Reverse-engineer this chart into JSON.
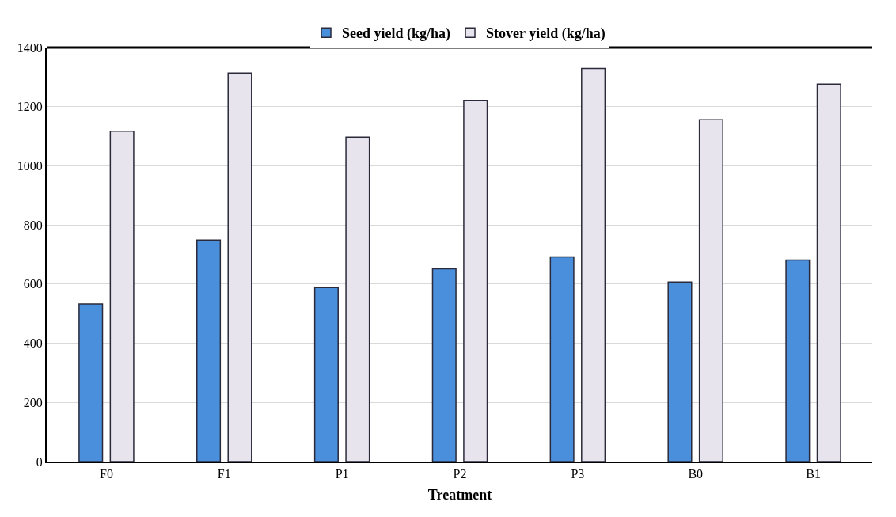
{
  "chart_data": {
    "type": "bar",
    "xlabel": "Treatment",
    "categories": [
      "F0",
      "F1",
      "P1",
      "P2",
      "P3",
      "B0",
      "B1"
    ],
    "series": [
      {
        "name": "Seed yield (kg/ha)",
        "color": "#4a8fdc",
        "values": [
          533,
          749,
          588,
          652,
          692,
          607,
          681
        ]
      },
      {
        "name": "Stover yield (kg/ha)",
        "color": "#e8e4ee",
        "values": [
          1117,
          1314,
          1097,
          1221,
          1329,
          1156,
          1276
        ]
      }
    ],
    "ylim": [
      0,
      1400
    ],
    "yticks": [
      0,
      200,
      400,
      600,
      800,
      1000,
      1200,
      1400
    ],
    "grid": "y",
    "legend": "top"
  }
}
